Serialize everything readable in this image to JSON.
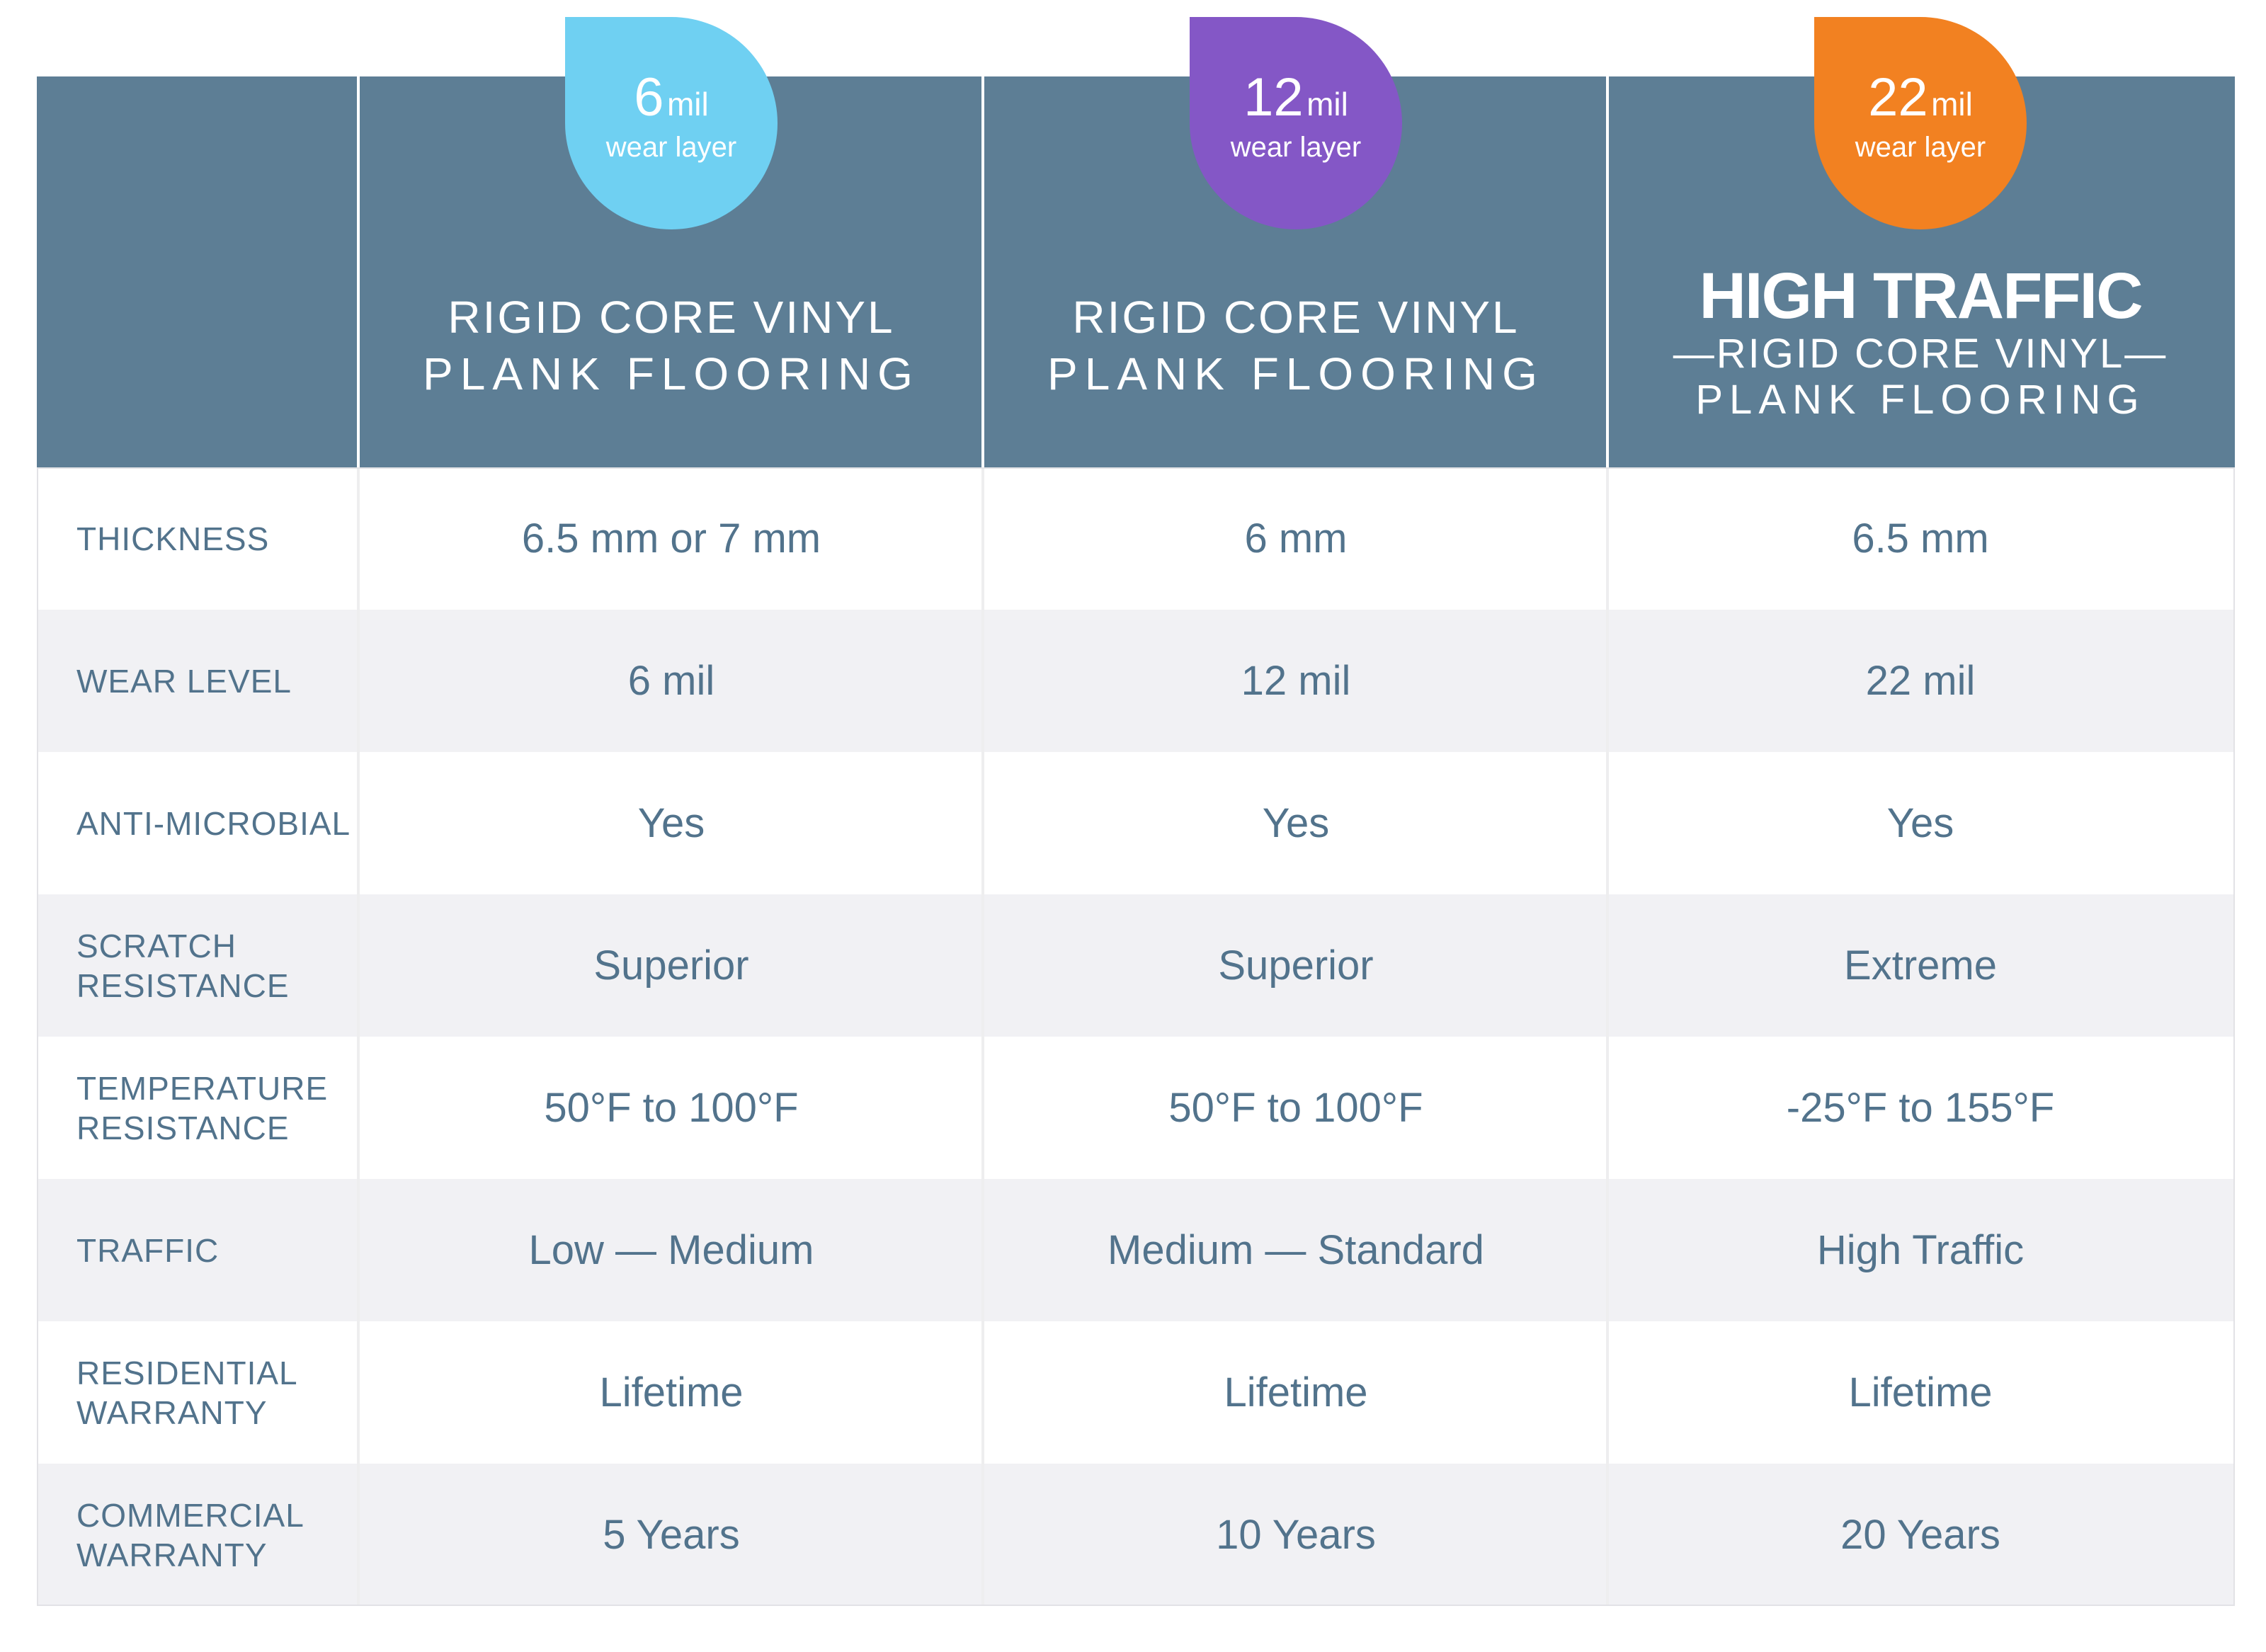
{
  "colors": {
    "header_bg": "#5d7e95",
    "text": "#52738c",
    "row_alt": "#f1f1f4",
    "badge_6": "#6fd0f2",
    "badge_12": "#8457c6",
    "badge_22": "#f28121"
  },
  "columns": [
    {
      "badge": {
        "number": "6",
        "unit": "mil",
        "label": "wear layer",
        "color": "#6fd0f2"
      },
      "title_line1": "RIGID CORE VINYL",
      "title_line2": "PLANK FLOORING"
    },
    {
      "badge": {
        "number": "12",
        "unit": "mil",
        "label": "wear layer",
        "color": "#8457c6"
      },
      "title_line1": "RIGID CORE VINYL",
      "title_line2": "PLANK FLOORING"
    },
    {
      "badge": {
        "number": "22",
        "unit": "mil",
        "label": "wear layer",
        "color": "#f28121"
      },
      "title_big": "HIGH TRAFFIC",
      "title_line1": "—RIGID CORE VINYL—",
      "title_line2": "PLANK FLOORING"
    }
  ],
  "rows": [
    {
      "label": "THICKNESS",
      "values": [
        "6.5 mm or 7 mm",
        "6 mm",
        "6.5 mm"
      ]
    },
    {
      "label": "WEAR LEVEL",
      "values": [
        "6 mil",
        "12 mil",
        "22 mil"
      ]
    },
    {
      "label": "ANTI-MICROBIAL",
      "values": [
        "Yes",
        "Yes",
        "Yes"
      ]
    },
    {
      "label": "SCRATCH\nRESISTANCE",
      "values": [
        "Superior",
        "Superior",
        "Extreme"
      ]
    },
    {
      "label": "TEMPERATURE\nRESISTANCE",
      "values": [
        "50°F to 100°F",
        "50°F to 100°F",
        "-25°F to 155°F"
      ]
    },
    {
      "label": "TRAFFIC",
      "values": [
        "Low — Medium",
        "Medium — Standard",
        "High Traffic"
      ]
    },
    {
      "label": "RESIDENTIAL\nWARRANTY",
      "values": [
        "Lifetime",
        "Lifetime",
        "Lifetime"
      ]
    },
    {
      "label": "COMMERCIAL\nWARRANTY",
      "values": [
        "5 Years",
        "10 Years",
        "20 Years"
      ]
    }
  ]
}
